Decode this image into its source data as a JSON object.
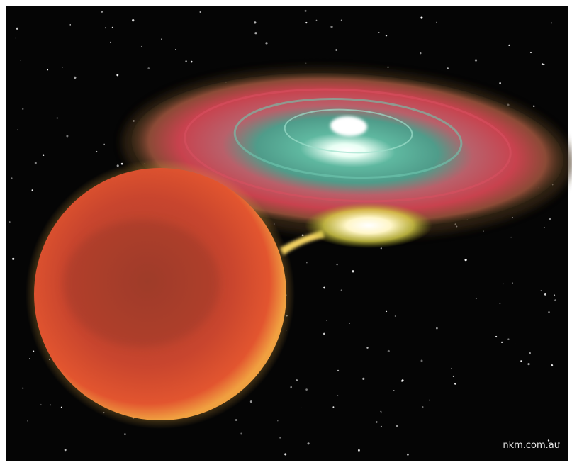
{
  "watermark": "nkm.com.au"
}
